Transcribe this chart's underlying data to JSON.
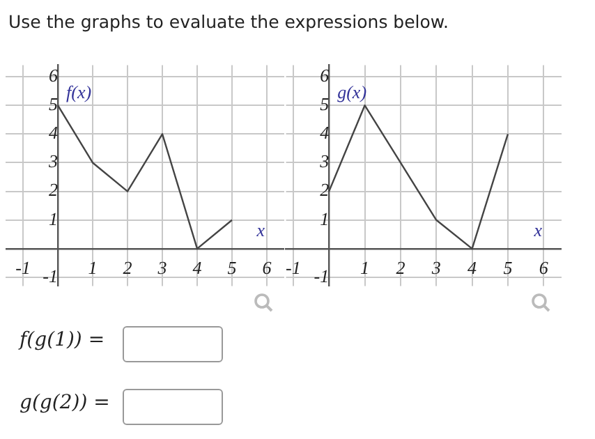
{
  "chart_data": [
    {
      "type": "line",
      "title": "Use the graphs to evaluate the expressions below.",
      "xlabel": "x",
      "ylabel": "f(x)",
      "x": [
        0,
        1,
        2,
        3,
        4,
        5
      ],
      "values": [
        5,
        3,
        2,
        4,
        0,
        1
      ],
      "color": "#444444",
      "xlim": [
        -1.5,
        6.5
      ],
      "ylim": [
        -1.3,
        6.4
      ],
      "xticks": [
        -1,
        1,
        2,
        3,
        4,
        5,
        6
      ],
      "yticks": [
        -1,
        1,
        2,
        3,
        4,
        5,
        6
      ],
      "grid": true,
      "marker": "none"
    },
    {
      "type": "line",
      "xlabel": "x",
      "ylabel": "g(x)",
      "x": [
        0,
        1,
        2,
        3,
        4,
        5
      ],
      "values": [
        2,
        5,
        3,
        1,
        0,
        4
      ],
      "color": "#444444",
      "xlim": [
        -1.2,
        6.5
      ],
      "ylim": [
        -1.3,
        6.4
      ],
      "xticks": [
        -1,
        1,
        2,
        3,
        4,
        5,
        6
      ],
      "yticks": [
        -1,
        1,
        2,
        3,
        4,
        5,
        6
      ],
      "grid": true,
      "marker": "none",
      "annotations": [
        "f(g(1)) =",
        "g(g(2)) ="
      ]
    }
  ]
}
